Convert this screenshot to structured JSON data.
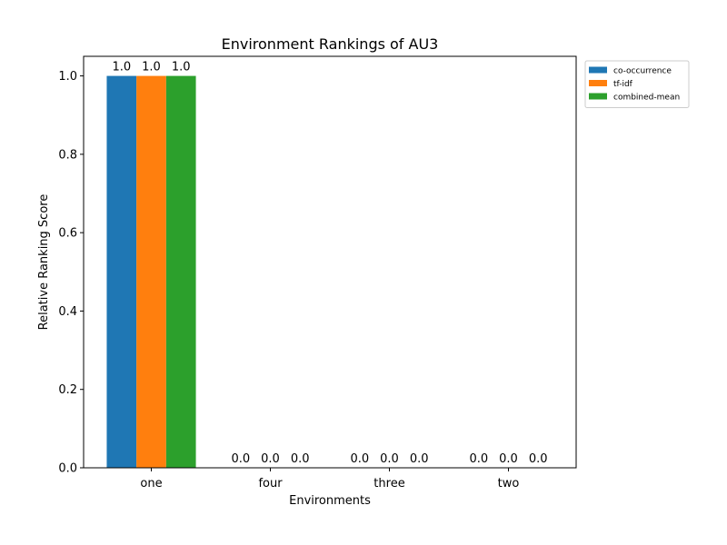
{
  "chart_data": {
    "type": "bar",
    "title": "Environment Rankings of AU3",
    "xlabel": "Environments",
    "ylabel": "Relative Ranking Score",
    "categories": [
      "one",
      "four",
      "three",
      "two"
    ],
    "series": [
      {
        "name": "co-occurrence",
        "color": "#1f77b4",
        "values": [
          1.0,
          0.0,
          0.0,
          0.0
        ],
        "labels": [
          "1.0",
          "0.0",
          "0.0",
          "0.0"
        ]
      },
      {
        "name": "tf-idf",
        "color": "#ff7f0e",
        "values": [
          1.0,
          0.0,
          0.0,
          0.0
        ],
        "labels": [
          "1.0",
          "0.0",
          "0.0",
          "0.0"
        ]
      },
      {
        "name": "combined-mean",
        "color": "#2ca02c",
        "values": [
          1.0,
          0.0,
          0.0,
          0.0
        ],
        "labels": [
          "1.0",
          "0.0",
          "0.0",
          "0.0"
        ]
      }
    ],
    "ylim": [
      0,
      1.05
    ],
    "yticks": [
      0.0,
      0.2,
      0.4,
      0.6,
      0.8,
      1.0
    ],
    "ytick_labels": [
      "0.0",
      "0.2",
      "0.4",
      "0.6",
      "0.8",
      "1.0"
    ],
    "grid": false,
    "legend_position": "outside-top-right"
  }
}
